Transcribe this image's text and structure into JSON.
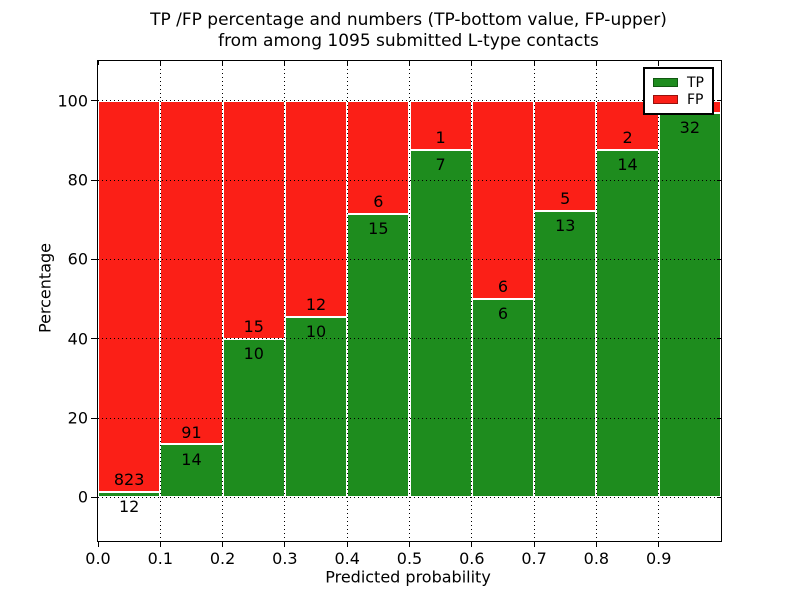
{
  "chart_data": {
    "type": "bar",
    "stacked": true,
    "title_lines": [
      "TP /FP percentage and numbers (TP-bottom value, FP-upper)",
      "from among 1095 submitted L-type contacts"
    ],
    "xlabel": "Predicted probability",
    "ylabel": "Percentage",
    "total_submitted_contacts": 1095,
    "x_tick_labels": [
      "0.0",
      "0.1",
      "0.2",
      "0.3",
      "0.4",
      "0.5",
      "0.6",
      "0.7",
      "0.8",
      "0.9"
    ],
    "y_ticks": [
      0,
      20,
      40,
      60,
      80,
      100
    ],
    "xlim": [
      0,
      1.0
    ],
    "ylim": [
      -11,
      110
    ],
    "bin_width": 0.1,
    "grid": true,
    "colors": {
      "tp": "#1E8C1E",
      "fp": "#FB1F17"
    },
    "legend": {
      "position": "upper-right",
      "entries": [
        {
          "label": "TP",
          "color": "#1E8C1E",
          "edge": "#115811"
        },
        {
          "label": "FP",
          "color": "#FB1F17",
          "edge": "#96120d"
        }
      ]
    },
    "bars": [
      {
        "bin_start": 0.0,
        "bin_end": 0.1,
        "tp": 12,
        "fp": 823,
        "tp_label": "12",
        "fp_label": "823"
      },
      {
        "bin_start": 0.1,
        "bin_end": 0.2,
        "tp": 14,
        "fp": 91,
        "tp_label": "14",
        "fp_label": "91"
      },
      {
        "bin_start": 0.2,
        "bin_end": 0.3,
        "tp": 10,
        "fp": 15,
        "tp_label": "10",
        "fp_label": "15"
      },
      {
        "bin_start": 0.3,
        "bin_end": 0.4,
        "tp": 10,
        "fp": 12,
        "tp_label": "10",
        "fp_label": "12"
      },
      {
        "bin_start": 0.4,
        "bin_end": 0.5,
        "tp": 15,
        "fp": 6,
        "tp_label": "15",
        "fp_label": "6"
      },
      {
        "bin_start": 0.5,
        "bin_end": 0.6,
        "tp": 7,
        "fp": 1,
        "tp_label": "7",
        "fp_label": "1"
      },
      {
        "bin_start": 0.6,
        "bin_end": 0.7,
        "tp": 6,
        "fp": 6,
        "tp_label": "6",
        "fp_label": "6"
      },
      {
        "bin_start": 0.7,
        "bin_end": 0.8,
        "tp": 13,
        "fp": 5,
        "tp_label": "13",
        "fp_label": "5"
      },
      {
        "bin_start": 0.8,
        "bin_end": 0.9,
        "tp": 14,
        "fp": 2,
        "tp_label": "14",
        "fp_label": "2"
      },
      {
        "bin_start": 0.9,
        "bin_end": 1.0,
        "tp": 32,
        "fp": 1,
        "tp_label": "32",
        "fp_label": ""
      }
    ]
  }
}
